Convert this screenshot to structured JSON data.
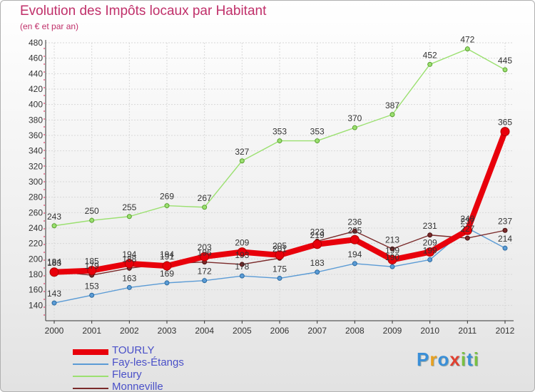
{
  "title": "Evolution des Impôts locaux par Habitant",
  "subtitle": "(en € et par an)",
  "logo_text": "Proxiti",
  "chart_data": {
    "type": "line",
    "x": [
      "2000",
      "2001",
      "2002",
      "2003",
      "2004",
      "2005",
      "2006",
      "2007",
      "2008",
      "2009",
      "2010",
      "2011",
      "2012"
    ],
    "ylim": [
      120,
      480
    ],
    "yticks": [
      140,
      160,
      180,
      200,
      220,
      240,
      260,
      280,
      300,
      320,
      340,
      360,
      380,
      400,
      420,
      440,
      460,
      480
    ],
    "grid": true,
    "legend_position": "bottom-left",
    "series": [
      {
        "name": "TOURLY",
        "color": "#e8000b",
        "values": [
          183,
          185,
          194,
          191,
          203,
          209,
          205,
          219,
          225,
          199,
          209,
          237,
          365
        ]
      },
      {
        "name": "Fay-les-Étangs",
        "color": "#5b9bd5",
        "values": [
          143,
          153,
          163,
          169,
          172,
          178,
          175,
          183,
          194,
          190,
          199,
          240,
          214
        ]
      },
      {
        "name": "Fleury",
        "color": "#9be070",
        "values": [
          243,
          250,
          255,
          269,
          267,
          327,
          353,
          353,
          370,
          387,
          452,
          472,
          445
        ]
      },
      {
        "name": "Monneville",
        "color": "#7a2a2a",
        "values": [
          184,
          179,
          188,
          194,
          196,
          193,
          201,
          223,
          236,
          213,
          231,
          227,
          237
        ]
      }
    ]
  }
}
